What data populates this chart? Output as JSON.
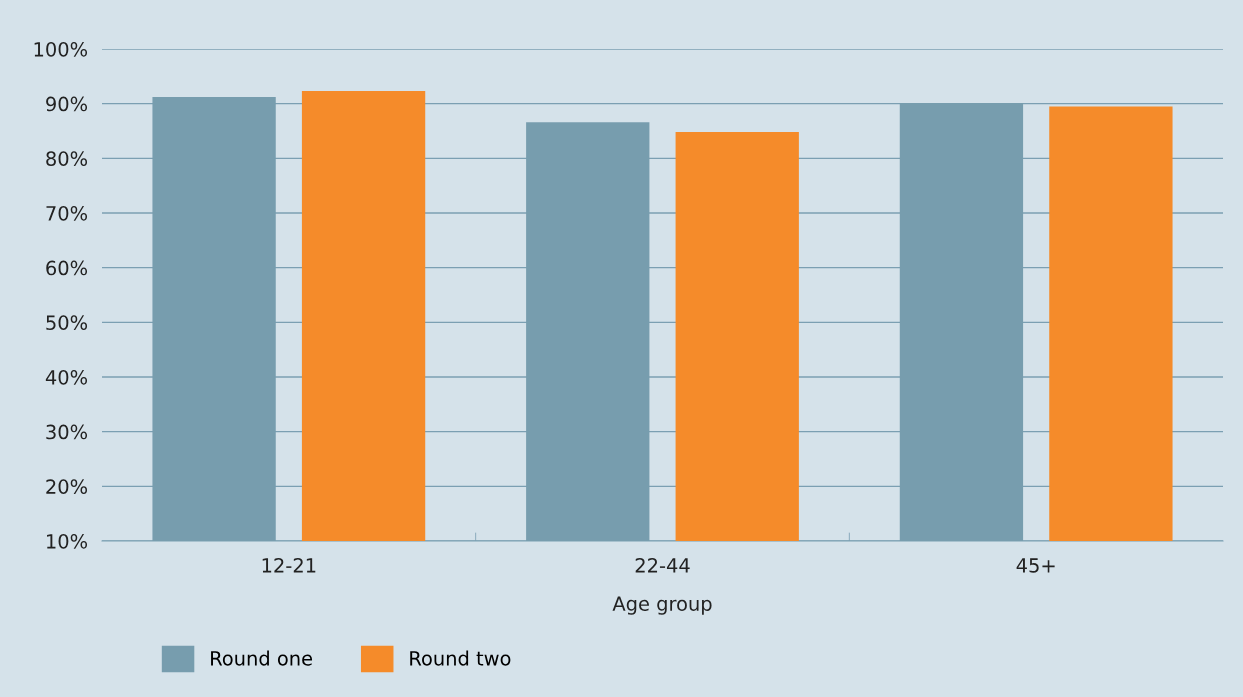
{
  "chart_data": {
    "type": "bar",
    "xlabel": "Age group",
    "categories": [
      "12-21",
      "22-44",
      "45+"
    ],
    "series": [
      {
        "name": "Round one",
        "color": "#779dae",
        "values": [
          91.2,
          86.6,
          90.1
        ]
      },
      {
        "name": "Round two",
        "color": "#f58b2a",
        "values": [
          92.3,
          84.8,
          89.5
        ]
      }
    ],
    "ylim": [
      10,
      100
    ],
    "yticks": [
      {
        "value": 10,
        "label": "10%"
      },
      {
        "value": 20,
        "label": "20%"
      },
      {
        "value": 30,
        "label": "30%"
      },
      {
        "value": 40,
        "label": "40%"
      },
      {
        "value": 50,
        "label": "50%"
      },
      {
        "value": 60,
        "label": "60%"
      },
      {
        "value": 70,
        "label": "70%"
      },
      {
        "value": 80,
        "label": "80%"
      },
      {
        "value": 90,
        "label": "90%"
      },
      {
        "value": 100,
        "label": "100%"
      }
    ],
    "grid": "y",
    "legend": "bottom left"
  }
}
